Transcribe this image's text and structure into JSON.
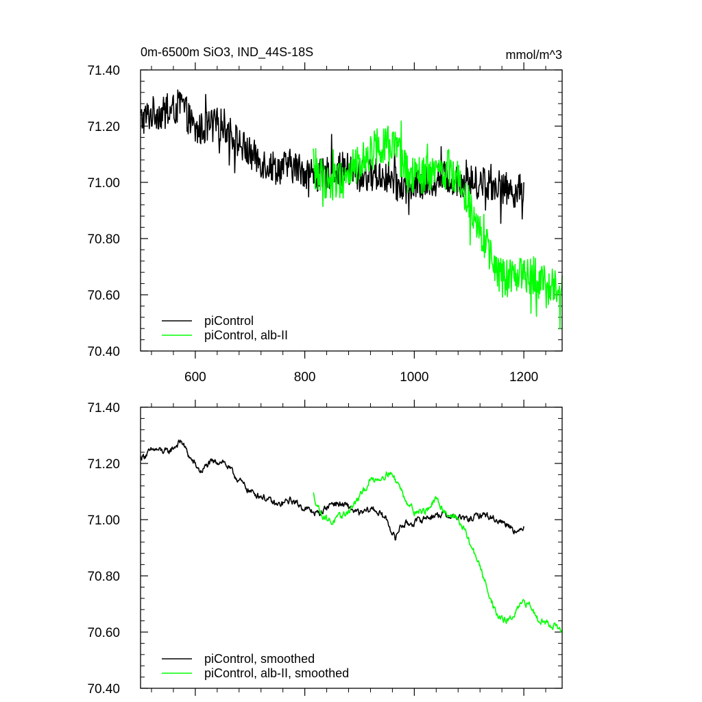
{
  "chart_data": [
    {
      "type": "line",
      "title_left": "0m-6500m SiO3, IND_44S-18S",
      "title_right": "mmol/m^3",
      "xlim": [
        500,
        1270
      ],
      "ylim": [
        70.4,
        71.4
      ],
      "x_ticks": [
        600,
        800,
        1000,
        1200
      ],
      "x_tick_labels": [
        "600",
        "800",
        "1000",
        "1200"
      ],
      "y_ticks": [
        70.4,
        70.6,
        70.8,
        71.0,
        71.2,
        71.4
      ],
      "y_tick_labels": [
        "70.40",
        "70.60",
        "70.80",
        "71.00",
        "71.20",
        "71.40"
      ],
      "legend_position": "bottom-left",
      "series": [
        {
          "name": "piControl",
          "color": "#000000",
          "x": [
            500,
            525,
            550,
            575,
            600,
            625,
            650,
            675,
            700,
            725,
            750,
            775,
            800,
            825,
            850,
            875,
            900,
            925,
            950,
            975,
            1000,
            1025,
            1050,
            1075,
            1100,
            1125,
            1150,
            1175,
            1200
          ],
          "values": [
            71.22,
            71.25,
            71.24,
            71.28,
            71.18,
            71.2,
            71.21,
            71.15,
            71.1,
            71.07,
            71.05,
            71.06,
            71.04,
            71.02,
            71.04,
            71.05,
            71.02,
            71.03,
            71.02,
            70.98,
            70.99,
            71.0,
            71.02,
            71.01,
            71.0,
            71.0,
            70.99,
            70.97,
            70.97
          ],
          "noise_amplitude": 0.06
        },
        {
          "name": "piControl, alb-II",
          "color": "#00ff00",
          "x": [
            815,
            840,
            865,
            890,
            915,
            940,
            965,
            990,
            1015,
            1040,
            1065,
            1090,
            1115,
            1140,
            1165,
            1190,
            1215,
            1240,
            1270
          ],
          "values": [
            71.05,
            71.0,
            71.01,
            71.05,
            71.1,
            71.14,
            71.12,
            71.02,
            71.02,
            71.03,
            71.05,
            70.98,
            70.87,
            70.72,
            70.65,
            70.68,
            70.67,
            70.64,
            70.6
          ],
          "noise_amplitude": 0.07
        }
      ]
    },
    {
      "type": "line",
      "xlim": [
        500,
        1270
      ],
      "ylim": [
        70.4,
        71.4
      ],
      "x_ticks": [
        600,
        800,
        1000,
        1200
      ],
      "y_ticks": [
        70.4,
        70.6,
        70.8,
        71.0,
        71.2,
        71.4
      ],
      "y_tick_labels": [
        "70.40",
        "70.60",
        "70.80",
        "71.00",
        "71.20",
        "71.40"
      ],
      "legend_position": "bottom-left",
      "series": [
        {
          "name": "piControl, smoothed",
          "color": "#000000",
          "x": [
            500,
            525,
            550,
            575,
            590,
            610,
            625,
            650,
            675,
            700,
            725,
            750,
            775,
            800,
            825,
            850,
            875,
            900,
            925,
            950,
            965,
            975,
            1000,
            1025,
            1050,
            1075,
            1100,
            1125,
            1150,
            1175,
            1190,
            1200
          ],
          "values": [
            71.22,
            71.25,
            71.24,
            71.28,
            71.22,
            71.17,
            71.2,
            71.21,
            71.15,
            71.1,
            71.08,
            71.05,
            71.07,
            71.04,
            71.02,
            71.06,
            71.05,
            71.02,
            71.04,
            71.0,
            70.93,
            70.98,
            70.99,
            71.01,
            71.02,
            71.01,
            71.0,
            71.02,
            71.0,
            70.98,
            70.95,
            70.98
          ],
          "noise_amplitude": 0.012
        },
        {
          "name": "piControl, alb-II, smoothed",
          "color": "#00ff00",
          "x": [
            815,
            830,
            850,
            865,
            880,
            900,
            920,
            940,
            955,
            970,
            985,
            1000,
            1020,
            1040,
            1060,
            1075,
            1090,
            1105,
            1115,
            1125,
            1140,
            1150,
            1165,
            1180,
            1195,
            1210,
            1225,
            1245,
            1260,
            1270
          ],
          "values": [
            71.09,
            71.02,
            70.99,
            71.01,
            71.03,
            71.08,
            71.14,
            71.15,
            71.17,
            71.13,
            71.07,
            71.03,
            71.03,
            71.07,
            71.02,
            71.01,
            70.97,
            70.9,
            70.86,
            70.8,
            70.72,
            70.66,
            70.64,
            70.65,
            70.7,
            70.7,
            70.65,
            70.63,
            70.62,
            70.6
          ],
          "noise_amplitude": 0.012
        }
      ]
    }
  ]
}
